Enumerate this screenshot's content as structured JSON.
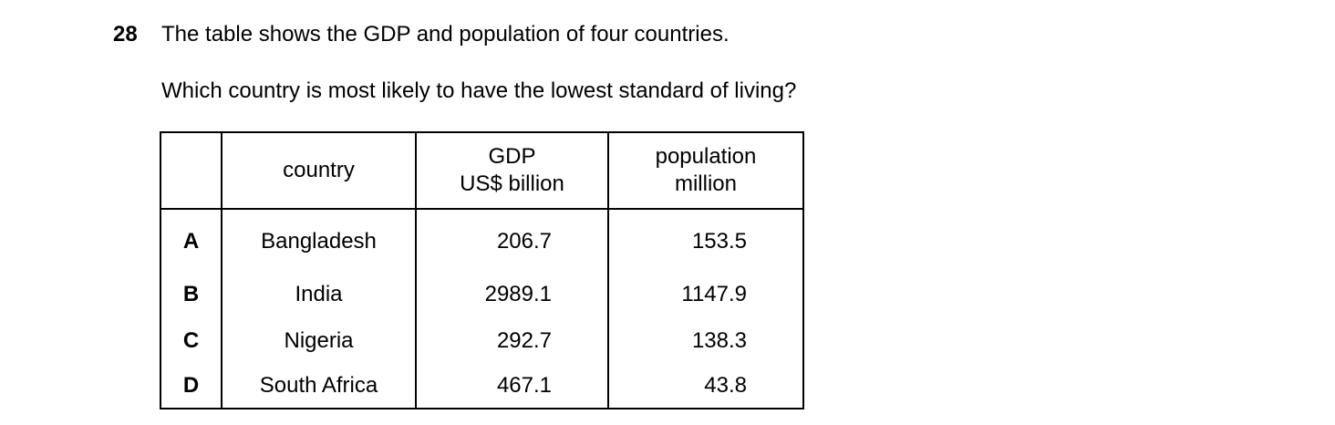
{
  "question": {
    "number": "28",
    "lines": [
      "The table shows the GDP and population of four countries.",
      "Which country is most likely to have the lowest standard of living?"
    ]
  },
  "table": {
    "header": [
      "",
      "country",
      [
        "GDP",
        "US$ billion"
      ],
      [
        "population",
        "million"
      ]
    ],
    "rows": [
      [
        "A",
        "Bangladesh",
        "206.7",
        "153.5"
      ],
      [
        "B",
        "India",
        "2989.1",
        "1147.9"
      ],
      [
        "C",
        "Nigeria",
        "292.7",
        "138.3"
      ],
      [
        "D",
        "South Africa",
        "467.1",
        "43.8"
      ]
    ]
  }
}
